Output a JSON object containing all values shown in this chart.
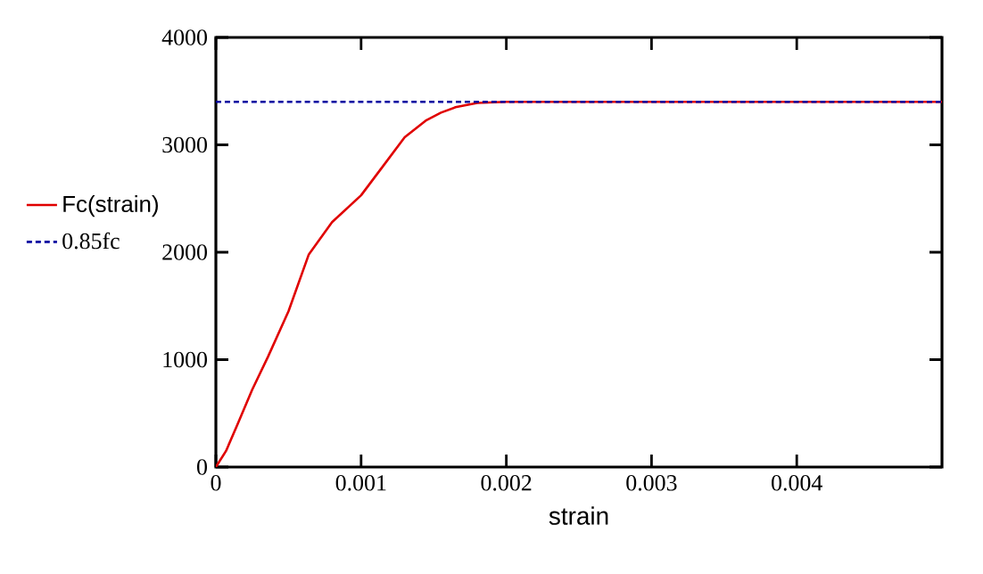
{
  "chart_data": {
    "type": "line",
    "xlabel": "strain",
    "xlim": [
      0,
      0.005
    ],
    "ylim": [
      0,
      4000
    ],
    "xticks": [
      0,
      0.001,
      0.002,
      0.003,
      0.004
    ],
    "yticks": [
      0,
      1000,
      2000,
      3000,
      4000
    ],
    "grid": false,
    "legend": "left",
    "marker": "none",
    "series": [
      {
        "name": "Fc(strain)",
        "color": "#e00000",
        "line_style": "solid",
        "x": [
          0,
          7e-05,
          0.00015,
          0.00025,
          0.00036,
          0.0005,
          0.00064,
          0.0008,
          0.001,
          0.00115,
          0.0013,
          0.00145,
          0.00155,
          0.00165,
          0.0018,
          0.002,
          0.003,
          0.004,
          0.005
        ],
        "values": [
          0,
          150,
          400,
          720,
          1030,
          1450,
          1980,
          2280,
          2530,
          2800,
          3070,
          3230,
          3300,
          3350,
          3390,
          3400,
          3400,
          3400,
          3400
        ]
      },
      {
        "name": "0.85fc",
        "color": "#0000a0",
        "line_style": "dotted",
        "x": [
          0,
          0.005
        ],
        "values": [
          3400,
          3400
        ]
      }
    ]
  }
}
